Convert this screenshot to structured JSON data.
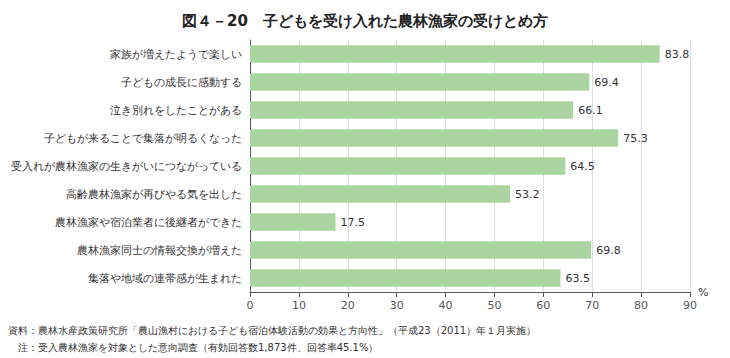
{
  "chart_data": {
    "type": "bar",
    "orientation": "horizontal",
    "title": "図４－20　子どもを受け入れた農林漁家の受けとめ方",
    "categories": [
      "集落や地域の連帯感が生まれた",
      "農林漁家同士の情報交換が増えた",
      "農林漁家や宿泊業者に後継者ができた",
      "高齢農林漁家が再びやる気を出した",
      "受入れが農林漁家の生きがいにつながっている",
      "子どもが来ることで集落が明るくなった",
      "泣き別れをしたことがある",
      "子どもの成長に感動する",
      "家族が増えたようで楽しい"
    ],
    "values": [
      63.5,
      69.8,
      17.5,
      53.2,
      64.5,
      75.3,
      66.1,
      69.4,
      83.8
    ],
    "color": "#aad4a0",
    "xlim": [
      0,
      90
    ],
    "xticks": [
      0,
      10,
      20,
      30,
      40,
      50,
      60,
      70,
      80,
      90
    ],
    "xlabel": "%",
    "grid": true,
    "data_labels": true,
    "annotations": [
      "資料：農林水産政策研究所「農山漁村における子ども宿泊体験活動の効果と方向性」（平成23（2011）年１月実施）",
      "　注：受入農林漁家を対象とした意向調査（有効回答数1,873件、回答率45.1%）"
    ]
  }
}
